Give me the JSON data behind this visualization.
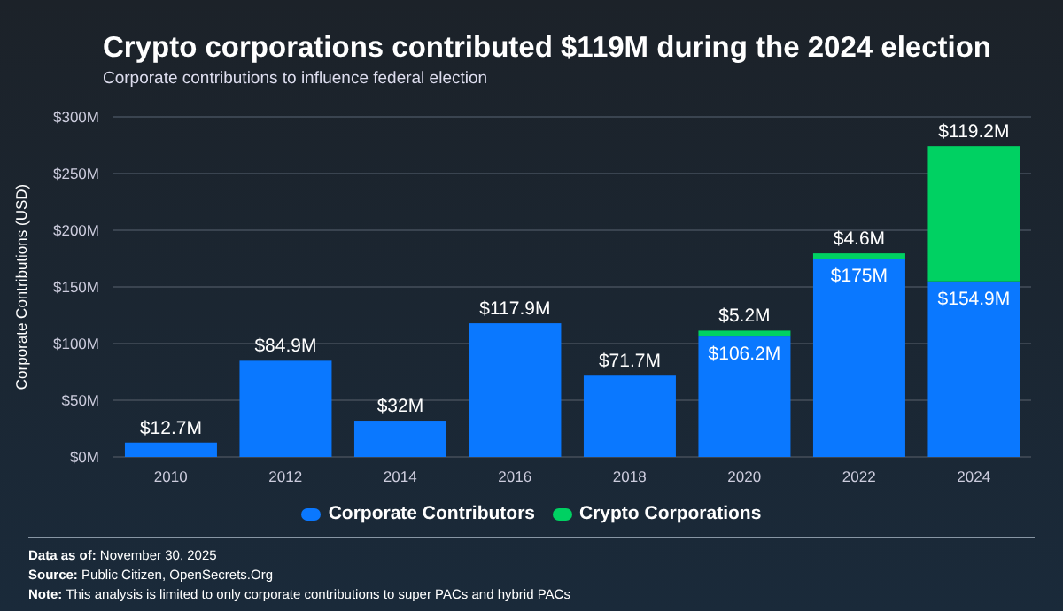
{
  "chart_data": {
    "type": "bar",
    "title": "Crypto corporations contributed $119M during the 2024 election",
    "subtitle": "Corporate contributions to influence federal election",
    "ylabel": "Corporate Contributions (USD)",
    "categories": [
      "2010",
      "2012",
      "2014",
      "2016",
      "2018",
      "2020",
      "2022",
      "2024"
    ],
    "stacked": true,
    "series": [
      {
        "name": "Corporate Contributors",
        "color": "#0a78ff",
        "values": [
          12.7,
          84.9,
          32,
          117.9,
          71.7,
          106.2,
          175,
          154.9
        ],
        "value_labels": [
          "$12.7M",
          "$84.9M",
          "$32M",
          "$117.9M",
          "$71.7M",
          "$106.2M",
          "$175M",
          "$154.9M"
        ]
      },
      {
        "name": "Crypto Corporations",
        "color": "#00d162",
        "values": [
          null,
          null,
          null,
          null,
          null,
          5.2,
          4.6,
          119.2
        ],
        "value_labels": [
          null,
          null,
          null,
          null,
          null,
          "$5.2M",
          "$4.6M",
          "$119.2M"
        ]
      }
    ],
    "ylim": [
      0,
      300
    ],
    "yticks": [
      {
        "value": 0,
        "label": "$0M"
      },
      {
        "value": 50,
        "label": "$50M"
      },
      {
        "value": 100,
        "label": "$100M"
      },
      {
        "value": 150,
        "label": "$150M"
      },
      {
        "value": 200,
        "label": "$200M"
      },
      {
        "value": 250,
        "label": "$250M"
      },
      {
        "value": 300,
        "label": "$300M"
      }
    ],
    "grid": "y",
    "legend": "bottom",
    "annotations": [
      "Data as of: November 30, 2025",
      "Source: Public Citizen, OpenSecrets.Org",
      "Note: This analysis is limited to only corporate contributions to super PACs and hybrid PACs"
    ]
  }
}
